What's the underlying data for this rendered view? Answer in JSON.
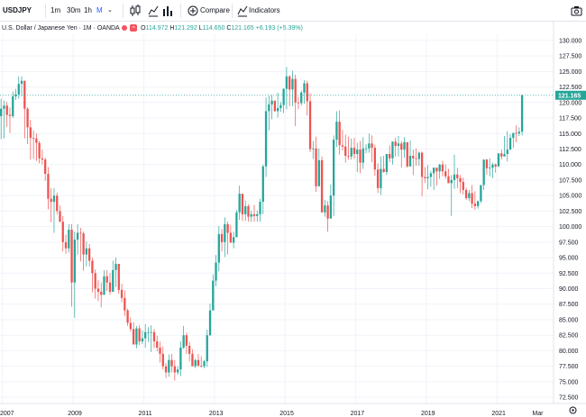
{
  "toolbar": {
    "symbol": "USDJPY",
    "intervals": [
      "1m",
      "30m",
      "1h",
      "M"
    ],
    "selected_interval": "M",
    "compare_label": "Compare",
    "indicators_label": "Indicators"
  },
  "legend": {
    "title": "U.S. Dollar / Japanese Yen · 1M · OANDA",
    "open_label": "O",
    "open": "114.972",
    "high_label": "H",
    "high": "121.292",
    "low_label": "L",
    "low": "114.650",
    "close_label": "C",
    "close": "121.165",
    "change": "+6.193 (+5.39%)"
  },
  "colors": {
    "up": "#26a69a",
    "down": "#ef5350",
    "last_price_badge": "#26a69a",
    "grid": "#f0f3fa",
    "axis_text": "#131722"
  },
  "icons": [
    "add-indicator-icon",
    "candles-icon",
    "bars-icon",
    "area-icon",
    "compare-icon",
    "indicators-icon",
    "camera-icon",
    "settings-icon"
  ],
  "chart_data": {
    "type": "candlestick",
    "title": "U.S. Dollar / Japanese Yen · 1M · OANDA",
    "ylim": [
      71.5,
      131
    ],
    "y_ticks": [
      "72.500",
      "75.000",
      "77.500",
      "80.000",
      "82.500",
      "85.000",
      "87.500",
      "90.000",
      "92.500",
      "95.000",
      "97.500",
      "100.000",
      "102.500",
      "105.000",
      "107.500",
      "110.000",
      "112.500",
      "115.000",
      "117.500",
      "120.000",
      "122.500",
      "125.000",
      "127.500",
      "130.000"
    ],
    "x_ticks": [
      "2007",
      "2009",
      "2011",
      "2013",
      "2015",
      "2017",
      "2019",
      "2021",
      "Mar"
    ],
    "last_price": "121.165",
    "x_label_pos": [
      0.5,
      24.5,
      48.5,
      72.5,
      96.5,
      120.5,
      144.5,
      168.5,
      182.3
    ],
    "closes": [
      119.0,
      119.5,
      118.0,
      117.8,
      121.0,
      121.3,
      123.0,
      123.5,
      119.0,
      116.0,
      114.3,
      114.2,
      113.5,
      111.0,
      110.8,
      108.5,
      104.5,
      104.0,
      105.0,
      102.5,
      100.8,
      97.5,
      96.5,
      99.5,
      91.0,
      97.9,
      99.0,
      98.9,
      95.5,
      96.5,
      94.5,
      92.5,
      90.0,
      89.5,
      89.0,
      92.0,
      91.0,
      89.5,
      93.0,
      94.0,
      89.8,
      88.5,
      86.5,
      84.5,
      83.5,
      81.0,
      83.6,
      81.5,
      82.0,
      83.0,
      83.0,
      83.0,
      81.5,
      80.5,
      79.5,
      77.5,
      76.5,
      78.5,
      77.5,
      76.5,
      77.0,
      80.5,
      82.5,
      80.8,
      79.5,
      77.5,
      78.5,
      77.6,
      77.5,
      78.3,
      82.5,
      86.5,
      91.3,
      94.2,
      98.8,
      97.5,
      100.4,
      99.0,
      97.4,
      98.3,
      102.3,
      105.3,
      102.0,
      103.3,
      101.6,
      102.0,
      101.7,
      102.0,
      104.0,
      109.7,
      118.6,
      119.7,
      120.3,
      118.6,
      119.1,
      119.6,
      122.2,
      124.2,
      122.1,
      123.8,
      120.0,
      119.9,
      121.6,
      123.1,
      120.2,
      112.5,
      112.6,
      106.5,
      110.7,
      102.3,
      103.4,
      101.3,
      105.0,
      114.0,
      116.9,
      113.1,
      112.9,
      111.4,
      111.3,
      112.7,
      111.7,
      112.4,
      110.3,
      112.6,
      112.6,
      113.4,
      112.7,
      109.2,
      106.2,
      109.3,
      108.8,
      111.7,
      111.0,
      113.7,
      113.0,
      113.4,
      112.4,
      113.6,
      109.7,
      111.4,
      111.0,
      110.9,
      111.9,
      108.0,
      107.8,
      108.0,
      108.6,
      109.5,
      108.9,
      110.0,
      108.9,
      108.1,
      107.0,
      107.5,
      108.4,
      107.8,
      107.2,
      105.9,
      104.6,
      105.4,
      103.7,
      103.3,
      104.1,
      106.7,
      110.8,
      109.4,
      109.5,
      110.0,
      109.7,
      111.8,
      111.3,
      111.7,
      112.4,
      114.3,
      115.1,
      115.0,
      115.3,
      121.2
    ],
    "highs": [
      120.6,
      120.3,
      120.1,
      119.2,
      121.8,
      122.2,
      124.2,
      124.2,
      123.5,
      119.2,
      117.2,
      115.5,
      115.0,
      113.8,
      112.4,
      111.1,
      109.6,
      106.2,
      106.2,
      105.5,
      103.4,
      101.7,
      98.7,
      100.4,
      100.4,
      99.2,
      100.4,
      99.8,
      99.2,
      97.6,
      97.2,
      95.0,
      93.1,
      91.4,
      91.0,
      93.0,
      93.0,
      92.5,
      94.5,
      95.0,
      94.0,
      90.8,
      89.7,
      86.8,
      85.4,
      84.6,
      84.0,
      84.1,
      83.3,
      84.3,
      83.8,
      84.1,
      83.5,
      82.4,
      81.5,
      80.7,
      78.0,
      79.4,
      79.5,
      78.5,
      77.5,
      81.5,
      84.0,
      82.9,
      81.4,
      80.2,
      78.7,
      79.5,
      79.1,
      78.5,
      83.4,
      87.6,
      92.3,
      95.4,
      100.1,
      99.6,
      101.5,
      100.8,
      100.2,
      99.2,
      102.7,
      106.6,
      105.3,
      104.2,
      103.6,
      102.6,
      103.5,
      102.6,
      104.5,
      110.0,
      120.8,
      121.1,
      121.2,
      120.3,
      121.6,
      120.1,
      122.3,
      125.7,
      124.4,
      125.1,
      124.5,
      120.9,
      121.9,
      123.6,
      123.5,
      121.5,
      113.8,
      114.5,
      112.6,
      111.3,
      104.3,
      104.1,
      106.8,
      114.7,
      118.6,
      118.7,
      115.6,
      114.8,
      114.5,
      114.2,
      114.3,
      113.5,
      113.8,
      114.4,
      113.3,
      115.0,
      114.7,
      113.2,
      110.2,
      111.3,
      111.4,
      111.5,
      113.1,
      113.7,
      114.3,
      114.6,
      113.8,
      114.4,
      113.3,
      113.9,
      112.4,
      112.6,
      112.1,
      112.1,
      109.6,
      109.9,
      109.0,
      109.0,
      109.4,
      110.1,
      110.6,
      110.0,
      109.3,
      108.3,
      111.6,
      109.5,
      108.3,
      107.9,
      106.3,
      105.9,
      106.7,
      105.7,
      104.2,
      106.3,
      110.3,
      110.9,
      111.0,
      110.3,
      110.2,
      111.6,
      112.4,
      114.6,
      115.4,
      114.9,
      114.9,
      116.3,
      116.0,
      121.3
    ],
    "lows": [
      114.1,
      114.2,
      116.1,
      115.1,
      117.5,
      120.4,
      120.6,
      121.0,
      114.2,
      113.3,
      110.8,
      110.9,
      110.6,
      110.2,
      110.0,
      107.4,
      102.8,
      100.7,
      99.0,
      102.0,
      100.7,
      96.0,
      95.6,
      95.8,
      87.1,
      85.3,
      95.5,
      94.4,
      92.9,
      93.6,
      93.6,
      89.4,
      88.4,
      88.0,
      87.0,
      89.7,
      89.6,
      89.0,
      90.0,
      90.3,
      89.2,
      87.8,
      85.6,
      84.0,
      83.1,
      81.0,
      80.4,
      80.9,
      81.1,
      80.5,
      81.4,
      79.8,
      80.4,
      79.9,
      78.1,
      77.0,
      75.6,
      75.8,
      76.5,
      75.2,
      76.1,
      75.9,
      80.3,
      79.5,
      78.3,
      77.5,
      77.2,
      77.4,
      77.3,
      77.2,
      77.4,
      82.4,
      86.6,
      90.4,
      92.8,
      96.0,
      95.1,
      95.5,
      98.6,
      96.5,
      98.7,
      101.1,
      100.9,
      100.9,
      100.8,
      100.8,
      100.8,
      100.8,
      100.8,
      102.0,
      108.0,
      115.5,
      117.3,
      118.5,
      117.6,
      118.5,
      118.3,
      118.9,
      119.4,
      119.4,
      116.2,
      118.9,
      119.5,
      119.8,
      117.9,
      112.0,
      110.9,
      105.6,
      106.8,
      102.4,
      101.6,
      99.2,
      101.8,
      101.7,
      112.8,
      111.6,
      112.3,
      110.3,
      110.8,
      110.8,
      110.9,
      108.8,
      108.6,
      109.3,
      111.8,
      111.9,
      110.4,
      108.2,
      105.4,
      105.1,
      108.7,
      108.3,
      110.4,
      110.0,
      111.3,
      111.3,
      109.5,
      111.1,
      109.5,
      110.3,
      108.3,
      109.8,
      109.8,
      104.9,
      107.1,
      106.0,
      106.4,
      105.9,
      106.6,
      107.7,
      108.1,
      107.7,
      107.4,
      101.7,
      106.1,
      106.2,
      105.4,
      105.2,
      104.3,
      104.1,
      103.0,
      102.7,
      102.9,
      103.8,
      105.9,
      108.4,
      108.1,
      107.8,
      108.7,
      109.8,
      110.8,
      111.4,
      110.5,
      112.6,
      112.7,
      113.6,
      114.6,
      114.7
    ]
  }
}
